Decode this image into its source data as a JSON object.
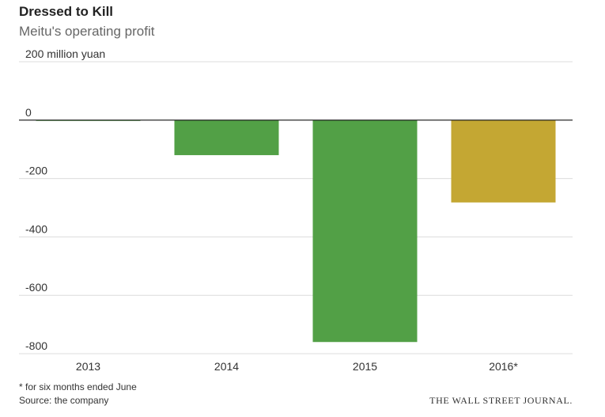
{
  "chart_data": {
    "type": "bar",
    "title": "Dressed to Kill",
    "subtitle": "Meitu's operating profit",
    "unit_label": "200 million yuan",
    "categories": [
      "2013",
      "2014",
      "2015",
      "2016*"
    ],
    "values": [
      -2,
      -120,
      -760,
      -282
    ],
    "colors": [
      "#52a046",
      "#52a046",
      "#52a046",
      "#c4a733"
    ],
    "ylim": [
      -800,
      200
    ],
    "yticks": [
      200,
      0,
      -200,
      -400,
      -600,
      -800
    ],
    "ytick_labels": [
      "200 million yuan",
      "0",
      "-200",
      "-400",
      "-600",
      "-800"
    ],
    "grid": true
  },
  "footer": {
    "footnote": "* for six months ended June",
    "source": "Source: the company",
    "brand": "THE WALL STREET JOURNAL."
  }
}
